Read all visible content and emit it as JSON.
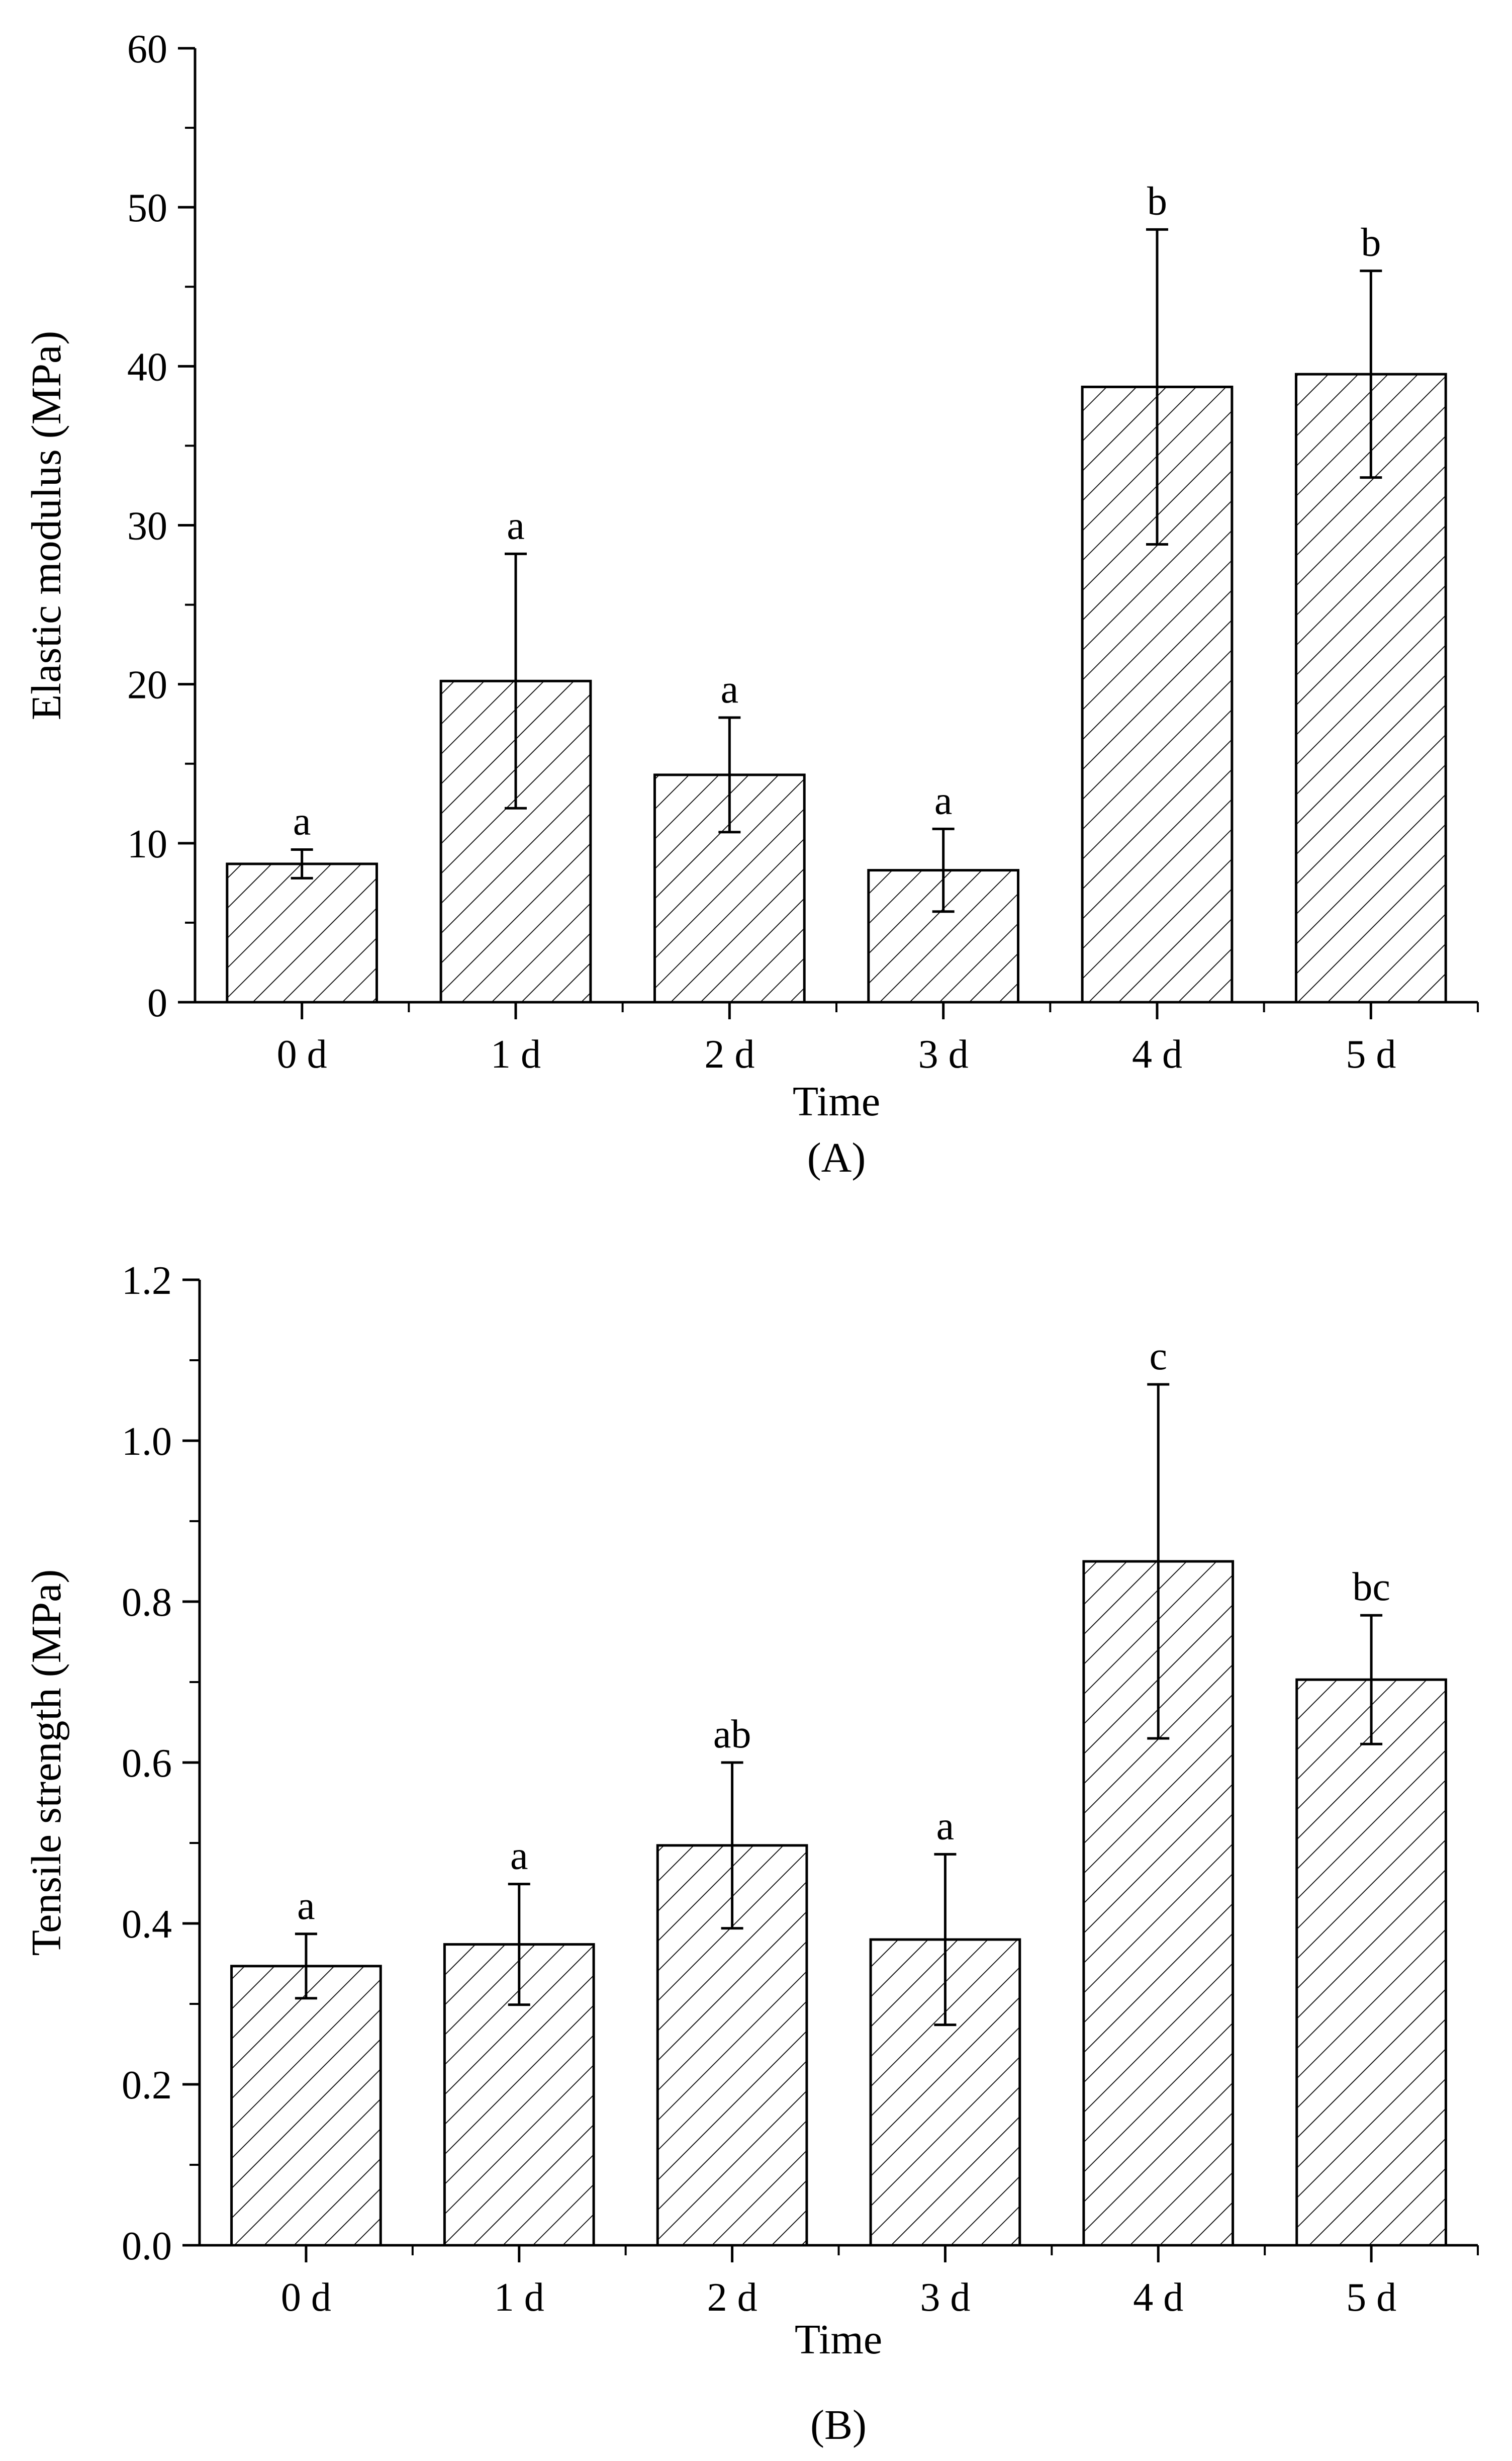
{
  "chart_data": [
    {
      "type": "bar",
      "panel_label": "(A)",
      "xlabel": "Time",
      "ylabel": "Elastic modulus (MPa)",
      "categories": [
        "0 d",
        "1 d",
        "2 d",
        "3 d",
        "4 d",
        "5 d"
      ],
      "values": [
        8.7,
        20.2,
        14.3,
        8.3,
        38.7,
        39.5
      ],
      "errors": [
        0.9,
        8.0,
        3.6,
        2.6,
        9.9,
        6.5
      ],
      "significance": [
        "a",
        "a",
        "a",
        "a",
        "b",
        "b"
      ],
      "ylim": [
        0,
        60
      ],
      "yticks": [
        0,
        10,
        20,
        30,
        40,
        50,
        60
      ],
      "ytick_labels": [
        "0",
        "10",
        "20",
        "30",
        "40",
        "50",
        "60"
      ],
      "bar_fill": "hatched",
      "grid": false
    },
    {
      "type": "bar",
      "panel_label": "(B)",
      "xlabel": "Time",
      "ylabel": "Tensile strength (MPa)",
      "categories": [
        "0 d",
        "1 d",
        "2 d",
        "3 d",
        "4 d",
        "5 d"
      ],
      "values": [
        0.347,
        0.374,
        0.497,
        0.38,
        0.85,
        0.703
      ],
      "errors": [
        0.04,
        0.075,
        0.103,
        0.106,
        0.22,
        0.08
      ],
      "significance": [
        "a",
        "a",
        "ab",
        "a",
        "c",
        "bc"
      ],
      "ylim": [
        0,
        1.2
      ],
      "yticks": [
        0,
        0.2,
        0.4,
        0.6,
        0.8,
        1.0,
        1.2
      ],
      "ytick_labels": [
        "0.0",
        "0.2",
        "0.4",
        "0.6",
        "0.8",
        "1.0",
        "1.2"
      ],
      "bar_fill": "hatched",
      "grid": false
    }
  ],
  "colors": {
    "ink": "#000000",
    "background": "#ffffff"
  }
}
